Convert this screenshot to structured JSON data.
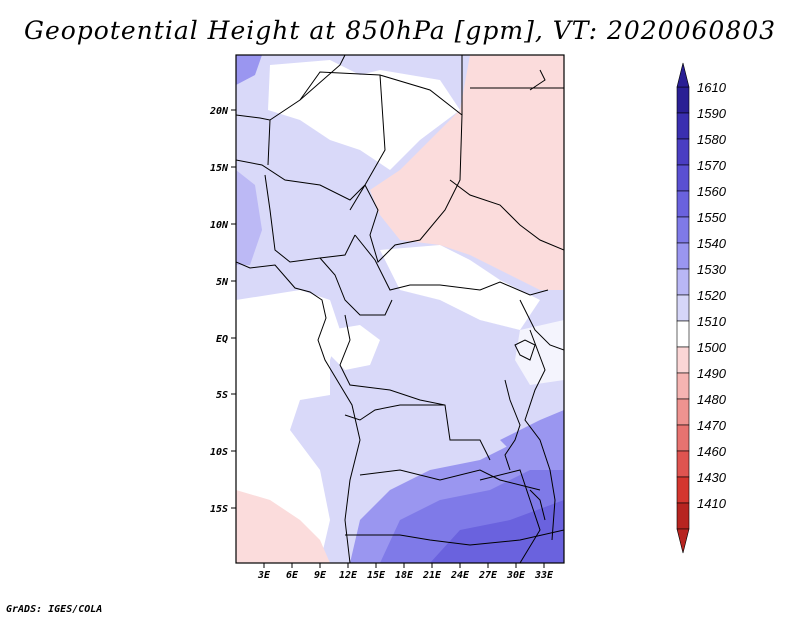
{
  "title": "Geopotential Height at 850hPa [gpm], VT: 2020060803",
  "credit": "GrADS: IGES/COLA",
  "axes": {
    "lon_ticks": [
      "3E",
      "6E",
      "9E",
      "12E",
      "15E",
      "18E",
      "21E",
      "24E",
      "27E",
      "30E",
      "33E"
    ],
    "lat_ticks": [
      "20N",
      "15N",
      "10N",
      "5N",
      "EQ",
      "5S",
      "10S",
      "15S"
    ]
  },
  "colorbar": {
    "levels": [
      "1610",
      "1590",
      "1580",
      "1570",
      "1560",
      "1550",
      "1540",
      "1530",
      "1520",
      "1510",
      "1500",
      "1490",
      "1480",
      "1470",
      "1460",
      "1430",
      "1410"
    ],
    "colors": [
      "#2a1f94",
      "#3a2fb0",
      "#4a3ec2",
      "#5a50d2",
      "#6a62de",
      "#7f7ae8",
      "#9a96f0",
      "#b9b7f5",
      "#d6d6f8",
      "#ffffff",
      "#fbd6d6",
      "#f5b4b2",
      "#ee9390",
      "#e77370",
      "#df5450",
      "#d4362f",
      "#b72420"
    ]
  },
  "colors": {
    "high_dark": "#6a62de",
    "high_mid": "#9a96f0",
    "high_light": "#c8c7f6",
    "neutral": "#ffffff",
    "low_light": "#fbdcdc"
  }
}
